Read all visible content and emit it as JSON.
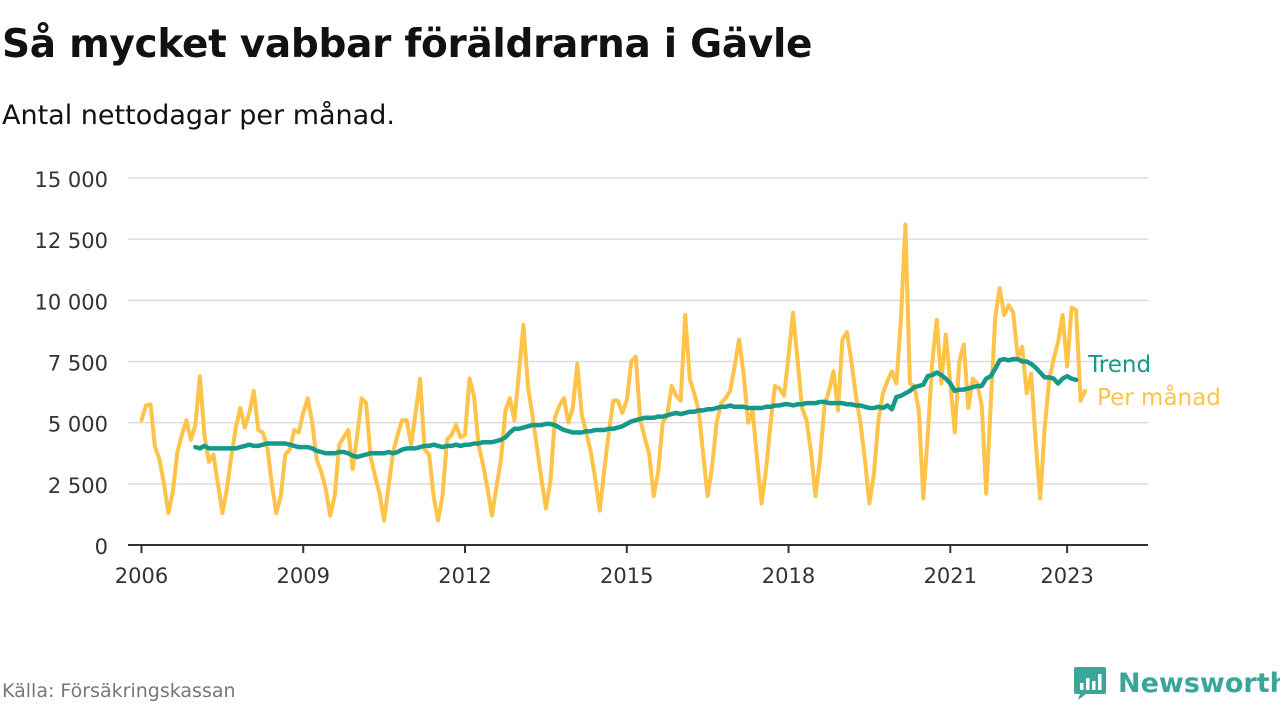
{
  "header": {
    "title": "Så mycket vabbar föräldrarna i Gävle",
    "subtitle": "Antal nettodagar per månad."
  },
  "footer": {
    "source": "Källa: Försäkringskassan",
    "brand": "Newsworthy",
    "brand_color": "#3aa69a"
  },
  "chart_data": {
    "type": "line",
    "title": "Så mycket vabbar föräldrarna i Gävle",
    "subtitle": "Antal nettodagar per månad.",
    "xlabel": "",
    "ylabel": "",
    "ylim": [
      0,
      15000
    ],
    "xlim": [
      "2005-10",
      "2024-09"
    ],
    "grid": true,
    "legend": "direct labels at line ends",
    "y_ticks": [
      {
        "value": 0,
        "label": "0"
      },
      {
        "value": 2500,
        "label": "2 500"
      },
      {
        "value": 5000,
        "label": "5 000"
      },
      {
        "value": 7500,
        "label": "7 500"
      },
      {
        "value": 10000,
        "label": "10 000"
      },
      {
        "value": 12500,
        "label": "12 500"
      },
      {
        "value": 15000,
        "label": "15 000"
      }
    ],
    "x_ticks": [
      {
        "value": "2006-01",
        "label": "2006"
      },
      {
        "value": "2009-01",
        "label": "2009"
      },
      {
        "value": "2012-01",
        "label": "2012"
      },
      {
        "value": "2015-01",
        "label": "2015"
      },
      {
        "value": "2018-01",
        "label": "2018"
      },
      {
        "value": "2021-01",
        "label": "2021"
      },
      {
        "value": "2023-03",
        "label": "2023"
      }
    ],
    "series": [
      {
        "name": "Per månad",
        "color": "#ffc34a",
        "start": "2006-01",
        "values": [
          5100,
          5700,
          5750,
          4000,
          3500,
          2500,
          1300,
          2200,
          3800,
          4500,
          5100,
          4300,
          4900,
          6900,
          4500,
          3400,
          3700,
          2500,
          1300,
          2300,
          3600,
          4800,
          5600,
          4800,
          5400,
          6300,
          4700,
          4600,
          4000,
          2500,
          1300,
          2000,
          3700,
          3900,
          4700,
          4600,
          5400,
          6000,
          5000,
          3500,
          3000,
          2300,
          1200,
          2000,
          4100,
          4400,
          4700,
          3100,
          4500,
          6000,
          5800,
          3600,
          2800,
          2100,
          1000,
          2400,
          3800,
          4500,
          5100,
          5100,
          4100,
          5400,
          6800,
          3900,
          3700,
          2000,
          1000,
          2000,
          4300,
          4500,
          4900,
          4400,
          4500,
          6800,
          6100,
          4100,
          3300,
          2300,
          1200,
          2400,
          3500,
          5500,
          6000,
          5100,
          7000,
          9000,
          6500,
          5300,
          4000,
          2700,
          1500,
          2600,
          5200,
          5700,
          6000,
          5000,
          5600,
          7400,
          5300,
          4600,
          3800,
          2700,
          1400,
          3100,
          4600,
          5900,
          5900,
          5400,
          5900,
          7500,
          7700,
          5100,
          4400,
          3700,
          2000,
          3000,
          5000,
          5300,
          6500,
          6100,
          5900,
          9400,
          6800,
          6200,
          5500,
          3700,
          2000,
          3200,
          5000,
          5800,
          6000,
          6300,
          7300,
          8400,
          7000,
          5000,
          5500,
          3500,
          1700,
          3100,
          5000,
          6500,
          6400,
          6100,
          7700,
          9500,
          7600,
          5600,
          5100,
          3800,
          2000,
          3500,
          5700,
          6300,
          7100,
          5500,
          8400,
          8700,
          7500,
          6100,
          5000,
          3500,
          1700,
          2900,
          5100,
          6200,
          6700,
          7100,
          6600,
          9200,
          13100,
          6600,
          6500,
          5500,
          1900,
          4500,
          7500,
          9200,
          6600,
          8600,
          6600,
          4600,
          7500,
          8200,
          5600,
          6800,
          6600,
          5700,
          2100,
          5700,
          9300,
          10500,
          9400,
          9800,
          9500,
          7700,
          8100,
          6200,
          7000,
          4200,
          1900,
          4800,
          6700,
          7600,
          8300,
          9400,
          7300,
          9700,
          9600,
          5900,
          6300
        ]
      },
      {
        "name": "Trend",
        "color": "#16998b",
        "start": "2007-01",
        "values": [
          4000,
          3950,
          4050,
          3950,
          3950,
          3950,
          3950,
          3950,
          3950,
          3950,
          4000,
          4050,
          4100,
          4050,
          4050,
          4100,
          4150,
          4150,
          4150,
          4150,
          4150,
          4100,
          4050,
          4000,
          4000,
          4000,
          3950,
          3850,
          3800,
          3750,
          3750,
          3750,
          3800,
          3800,
          3750,
          3650,
          3600,
          3650,
          3700,
          3750,
          3750,
          3750,
          3750,
          3800,
          3750,
          3800,
          3900,
          3950,
          3950,
          3950,
          4000,
          4050,
          4050,
          4100,
          4050,
          4000,
          4050,
          4050,
          4100,
          4050,
          4100,
          4100,
          4150,
          4150,
          4200,
          4200,
          4200,
          4250,
          4300,
          4400,
          4600,
          4750,
          4750,
          4800,
          4850,
          4900,
          4900,
          4900,
          4950,
          4950,
          4900,
          4800,
          4700,
          4650,
          4600,
          4600,
          4600,
          4650,
          4650,
          4700,
          4700,
          4700,
          4750,
          4750,
          4800,
          4850,
          4950,
          5050,
          5100,
          5150,
          5200,
          5200,
          5200,
          5250,
          5250,
          5300,
          5350,
          5400,
          5350,
          5400,
          5450,
          5450,
          5500,
          5500,
          5550,
          5550,
          5600,
          5650,
          5650,
          5700,
          5650,
          5650,
          5650,
          5600,
          5600,
          5600,
          5600,
          5650,
          5650,
          5700,
          5700,
          5750,
          5750,
          5700,
          5750,
          5750,
          5800,
          5800,
          5800,
          5850,
          5850,
          5800,
          5800,
          5800,
          5800,
          5750,
          5750,
          5700,
          5700,
          5650,
          5600,
          5600,
          5650,
          5600,
          5700,
          5550,
          6050,
          6100,
          6200,
          6300,
          6450,
          6500,
          6550,
          6900,
          6950,
          7050,
          6950,
          6800,
          6600,
          6300,
          6350,
          6350,
          6400,
          6450,
          6500,
          6500,
          6800,
          6900,
          7200,
          7550,
          7600,
          7550,
          7600,
          7600,
          7500,
          7500,
          7400,
          7250,
          7050,
          6850,
          6850,
          6800,
          6600,
          6800,
          6900,
          6800,
          6750
        ]
      }
    ],
    "end_labels": [
      {
        "series": "Trend",
        "text": "Trend"
      },
      {
        "series": "Per månad",
        "text": "Per månad"
      }
    ]
  }
}
